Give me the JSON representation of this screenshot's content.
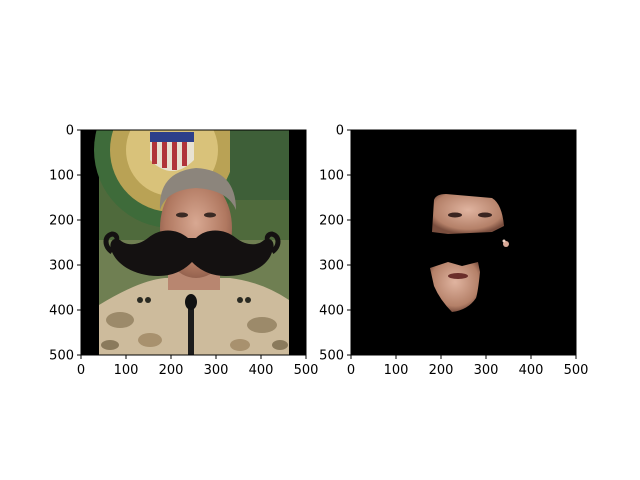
{
  "figure": {
    "panels": [
      {
        "name": "left-panel",
        "content": "portrait-with-mustache-overlay",
        "xlim": [
          0,
          500
        ],
        "ylim": [
          0,
          500
        ],
        "y_inverted": true,
        "xticks": [
          "0",
          "100",
          "200",
          "300",
          "400",
          "500"
        ],
        "yticks": [
          "0",
          "100",
          "200",
          "300",
          "400",
          "500"
        ]
      },
      {
        "name": "right-panel",
        "content": "face-skin-mask",
        "xlim": [
          0,
          500
        ],
        "ylim": [
          0,
          500
        ],
        "y_inverted": true,
        "xticks": [
          "0",
          "100",
          "200",
          "300",
          "400",
          "500"
        ],
        "yticks": [
          "0",
          "100",
          "200",
          "300",
          "400",
          "500"
        ]
      }
    ],
    "colors": {
      "background": "#ffffff",
      "axis": "#000000",
      "mask_background": "#000000",
      "mustache": "#141111",
      "uniform_desert_camo": "#cdbb9c",
      "skin": "#c89680"
    }
  }
}
